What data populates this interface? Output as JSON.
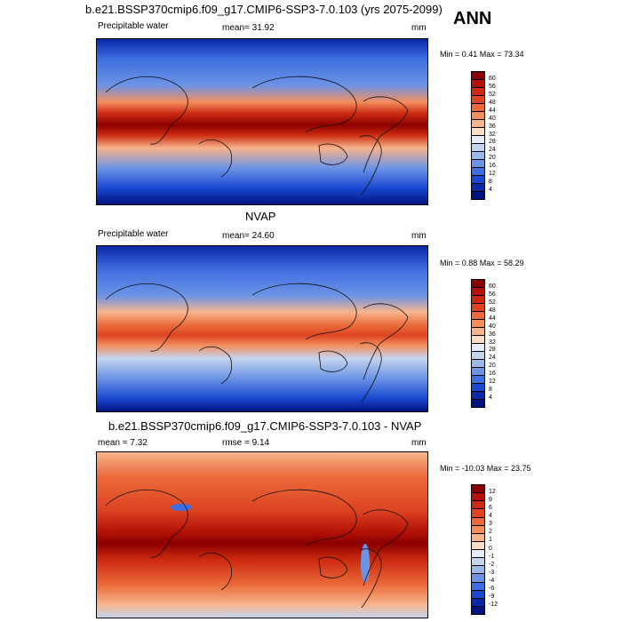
{
  "page": {
    "main_title": "b.e21.BSSP370cmip6.f09_g17.CMIP6-SSP3-7.0.103 (yrs 2075-2099)",
    "season": "ANN"
  },
  "panel1": {
    "variable": "Precipitable water",
    "mean_text": "mean=  31.92",
    "units": "mm",
    "minmax": "Min =   0.41 Max =  73.34"
  },
  "panel2": {
    "title": "NVAP",
    "variable": "Precipitable water",
    "mean_text": "mean=  24.60",
    "units": "mm",
    "minmax": "Min =   0.88 Max =  58.29"
  },
  "panel3": {
    "title": "b.e21.BSSP370cmip6.f09_g17.CMIP6-SSP3-7.0.103 - NVAP",
    "mean_text": "mean =   7.32",
    "rmse_text": "rmse =   9.14",
    "units": "mm",
    "minmax": "Min = -10.03 Max =  23.75"
  },
  "colorbar_abs": {
    "labels": [
      "60",
      "56",
      "52",
      "48",
      "44",
      "40",
      "36",
      "32",
      "28",
      "24",
      "20",
      "16",
      "12",
      "8",
      "4"
    ],
    "colors": [
      "#8b0000",
      "#b41208",
      "#cc2a10",
      "#dd4422",
      "#ea6a3a",
      "#f38e5e",
      "#f8b48c",
      "#fbdcc4",
      "#e6ecf6",
      "#c4d4ee",
      "#9cb8ea",
      "#6c94e6",
      "#3e6ee0",
      "#1a48d0",
      "#0a28a8",
      "#001480"
    ]
  },
  "colorbar_diff": {
    "labels": [
      "12",
      "9",
      "6",
      "4",
      "3",
      "2",
      "1",
      "0",
      "-1",
      "-2",
      "-3",
      "-4",
      "-6",
      "-9",
      "-12"
    ],
    "colors": [
      "#8b0000",
      "#b41208",
      "#cc2a10",
      "#dd4422",
      "#ea6a3a",
      "#f38e5e",
      "#f8b48c",
      "#fbdcc4",
      "#e6ecf6",
      "#c4d4ee",
      "#9cb8ea",
      "#6c94e6",
      "#3e6ee0",
      "#1a48d0",
      "#0a28a8",
      "#001480"
    ]
  }
}
